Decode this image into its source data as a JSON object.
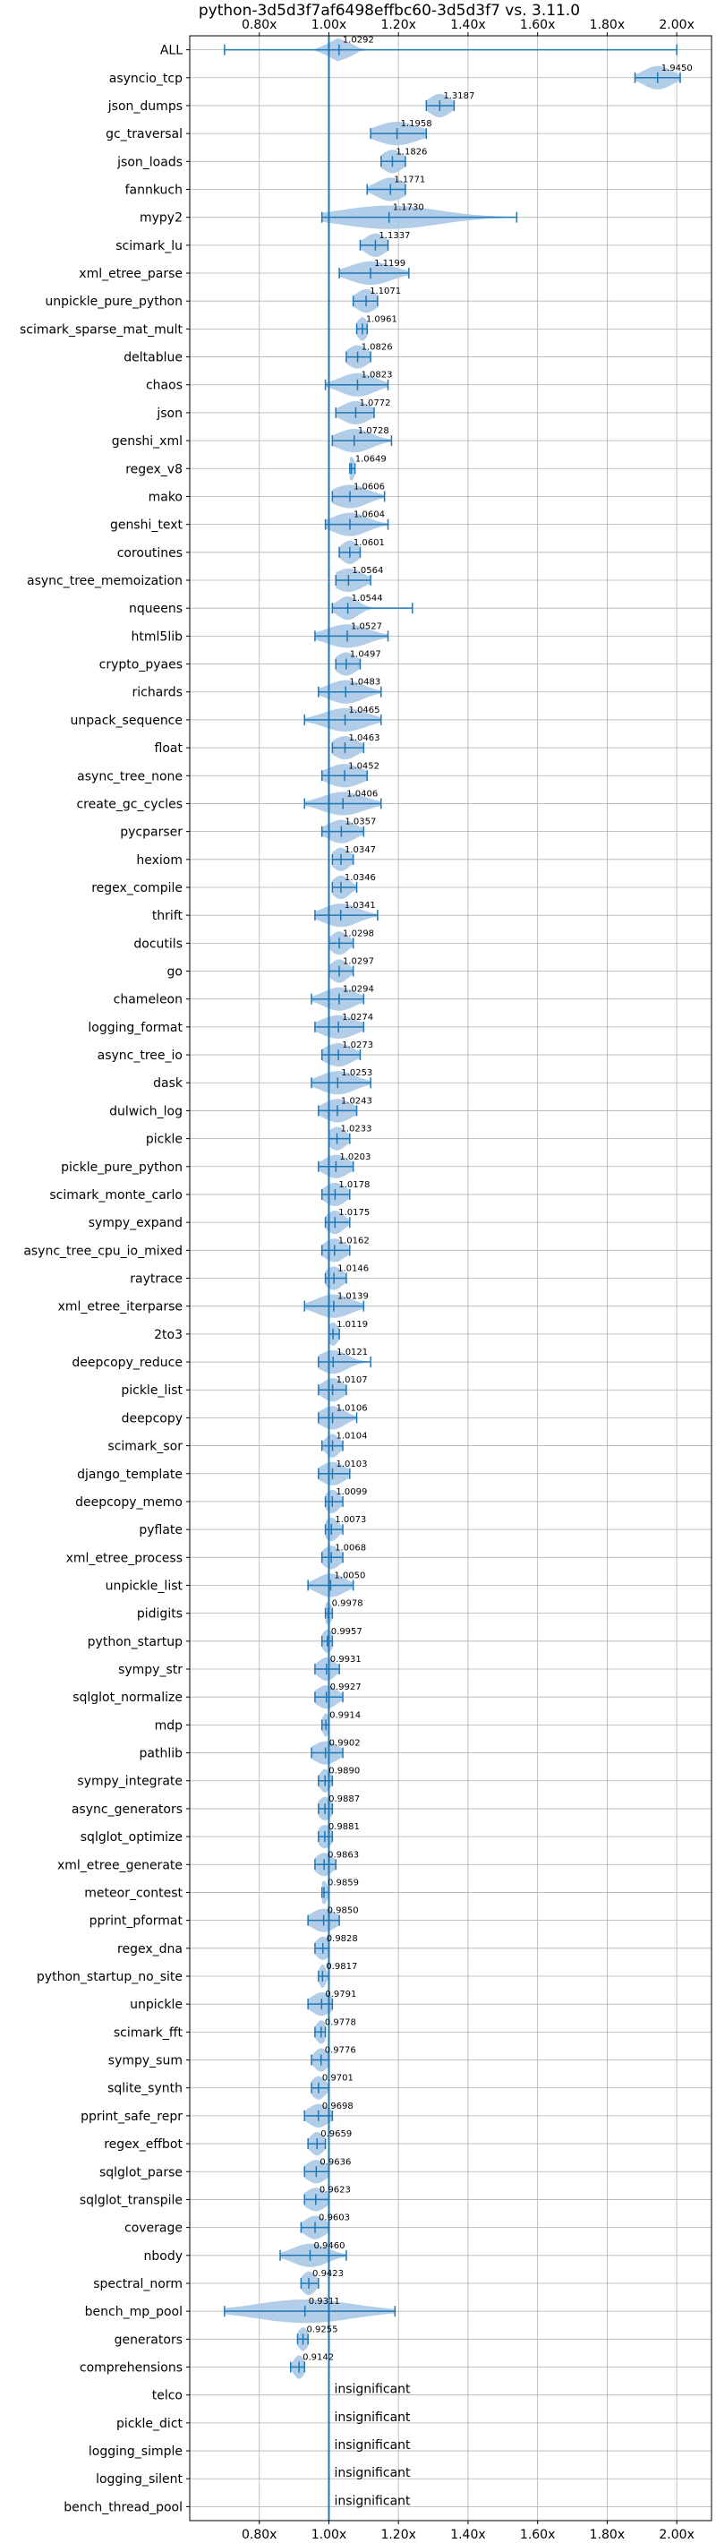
{
  "chart_data": {
    "type": "violin",
    "title": "python-3d5d3f7af6498effbc60-3d5d3f7 vs. 3.11.0",
    "xlabel": "",
    "ylabel": "",
    "xlim": [
      0.6,
      2.1
    ],
    "xticks": [
      0.8,
      1.0,
      1.2,
      1.4,
      1.6,
      1.8,
      2.0
    ],
    "xtick_labels": [
      "0.80x",
      "1.00x",
      "1.20x",
      "1.40x",
      "1.60x",
      "1.80x",
      "2.00x"
    ],
    "grid": true,
    "reference_line": 1.0,
    "colors": {
      "accent": "#1f77b4",
      "violin": "#aac8e4",
      "grid": "#b0b0b0"
    },
    "insignificant_text": "insignificant",
    "benchmarks": [
      {
        "name": "ALL",
        "value": 1.0292,
        "label": "1.0292",
        "min": 0.7,
        "max": 2.0,
        "spread": 0.03
      },
      {
        "name": "asyncio_tcp",
        "value": 1.945,
        "label": "1.9450",
        "min": 1.88,
        "max": 2.01,
        "spread": 0.04
      },
      {
        "name": "json_dumps",
        "value": 1.3187,
        "label": "1.3187",
        "min": 1.28,
        "max": 1.36,
        "spread": 0.03
      },
      {
        "name": "gc_traversal",
        "value": 1.1958,
        "label": "1.1958",
        "min": 1.12,
        "max": 1.28,
        "spread": 0.06
      },
      {
        "name": "json_loads",
        "value": 1.1826,
        "label": "1.1826",
        "min": 1.15,
        "max": 1.22,
        "spread": 0.03
      },
      {
        "name": "fannkuch",
        "value": 1.1771,
        "label": "1.1771",
        "min": 1.11,
        "max": 1.22,
        "spread": 0.04
      },
      {
        "name": "mypy2",
        "value": 1.173,
        "label": "1.1730",
        "min": 0.98,
        "max": 1.54,
        "spread": 0.14
      },
      {
        "name": "scimark_lu",
        "value": 1.1337,
        "label": "1.1337",
        "min": 1.09,
        "max": 1.17,
        "spread": 0.03
      },
      {
        "name": "xml_etree_parse",
        "value": 1.1199,
        "label": "1.1199",
        "min": 1.03,
        "max": 1.23,
        "spread": 0.06
      },
      {
        "name": "unpickle_pure_python",
        "value": 1.1071,
        "label": "1.1071",
        "min": 1.07,
        "max": 1.14,
        "spread": 0.03
      },
      {
        "name": "scimark_sparse_mat_mult",
        "value": 1.0961,
        "label": "1.0961",
        "min": 1.08,
        "max": 1.11,
        "spread": 0.015
      },
      {
        "name": "deltablue",
        "value": 1.0826,
        "label": "1.0826",
        "min": 1.05,
        "max": 1.12,
        "spread": 0.03
      },
      {
        "name": "chaos",
        "value": 1.0823,
        "label": "1.0823",
        "min": 0.99,
        "max": 1.17,
        "spread": 0.05
      },
      {
        "name": "json",
        "value": 1.0772,
        "label": "1.0772",
        "min": 1.02,
        "max": 1.13,
        "spread": 0.04
      },
      {
        "name": "genshi_xml",
        "value": 1.0728,
        "label": "1.0728",
        "min": 1.01,
        "max": 1.18,
        "spread": 0.05
      },
      {
        "name": "regex_v8",
        "value": 1.0649,
        "label": "1.0649",
        "min": 1.06,
        "max": 1.075,
        "spread": 0.01
      },
      {
        "name": "mako",
        "value": 1.0606,
        "label": "1.0606",
        "min": 1.01,
        "max": 1.16,
        "spread": 0.05
      },
      {
        "name": "genshi_text",
        "value": 1.0604,
        "label": "1.0604",
        "min": 0.99,
        "max": 1.17,
        "spread": 0.05
      },
      {
        "name": "coroutines",
        "value": 1.0601,
        "label": "1.0601",
        "min": 1.03,
        "max": 1.09,
        "spread": 0.025
      },
      {
        "name": "async_tree_memoization",
        "value": 1.0564,
        "label": "1.0564",
        "min": 1.02,
        "max": 1.12,
        "spread": 0.04
      },
      {
        "name": "nqueens",
        "value": 1.0544,
        "label": "1.0544",
        "min": 1.01,
        "max": 1.24,
        "spread": 0.03
      },
      {
        "name": "html5lib",
        "value": 1.0527,
        "label": "1.0527",
        "min": 0.96,
        "max": 1.17,
        "spread": 0.06
      },
      {
        "name": "crypto_pyaes",
        "value": 1.0497,
        "label": "1.0497",
        "min": 1.02,
        "max": 1.09,
        "spread": 0.03
      },
      {
        "name": "richards",
        "value": 1.0483,
        "label": "1.0483",
        "min": 0.97,
        "max": 1.15,
        "spread": 0.05
      },
      {
        "name": "unpack_sequence",
        "value": 1.0465,
        "label": "1.0465",
        "min": 0.93,
        "max": 1.15,
        "spread": 0.06
      },
      {
        "name": "float",
        "value": 1.0463,
        "label": "1.0463",
        "min": 1.01,
        "max": 1.1,
        "spread": 0.035
      },
      {
        "name": "async_tree_none",
        "value": 1.0452,
        "label": "1.0452",
        "min": 0.98,
        "max": 1.11,
        "spread": 0.05
      },
      {
        "name": "create_gc_cycles",
        "value": 1.0406,
        "label": "1.0406",
        "min": 0.93,
        "max": 1.15,
        "spread": 0.06
      },
      {
        "name": "pycparser",
        "value": 1.0357,
        "label": "1.0357",
        "min": 0.98,
        "max": 1.1,
        "spread": 0.04
      },
      {
        "name": "hexiom",
        "value": 1.0347,
        "label": "1.0347",
        "min": 1.01,
        "max": 1.07,
        "spread": 0.025
      },
      {
        "name": "regex_compile",
        "value": 1.0346,
        "label": "1.0346",
        "min": 1.01,
        "max": 1.08,
        "spread": 0.025
      },
      {
        "name": "thrift",
        "value": 1.0341,
        "label": "1.0341",
        "min": 0.96,
        "max": 1.14,
        "spread": 0.05
      },
      {
        "name": "docutils",
        "value": 1.0298,
        "label": "1.0298",
        "min": 1.0,
        "max": 1.07,
        "spread": 0.025
      },
      {
        "name": "go",
        "value": 1.0297,
        "label": "1.0297",
        "min": 1.0,
        "max": 1.07,
        "spread": 0.025
      },
      {
        "name": "chameleon",
        "value": 1.0294,
        "label": "1.0294",
        "min": 0.95,
        "max": 1.1,
        "spread": 0.045
      },
      {
        "name": "logging_format",
        "value": 1.0274,
        "label": "1.0274",
        "min": 0.96,
        "max": 1.1,
        "spread": 0.05
      },
      {
        "name": "async_tree_io",
        "value": 1.0273,
        "label": "1.0273",
        "min": 0.98,
        "max": 1.09,
        "spread": 0.04
      },
      {
        "name": "dask",
        "value": 1.0253,
        "label": "1.0253",
        "min": 0.95,
        "max": 1.12,
        "spread": 0.05
      },
      {
        "name": "dulwich_log",
        "value": 1.0243,
        "label": "1.0243",
        "min": 0.97,
        "max": 1.08,
        "spread": 0.04
      },
      {
        "name": "pickle",
        "value": 1.0233,
        "label": "1.0233",
        "min": 1.0,
        "max": 1.06,
        "spread": 0.025
      },
      {
        "name": "pickle_pure_python",
        "value": 1.0203,
        "label": "1.0203",
        "min": 0.97,
        "max": 1.07,
        "spread": 0.035
      },
      {
        "name": "scimark_monte_carlo",
        "value": 1.0178,
        "label": "1.0178",
        "min": 0.98,
        "max": 1.06,
        "spread": 0.03
      },
      {
        "name": "sympy_expand",
        "value": 1.0175,
        "label": "1.0175",
        "min": 0.99,
        "max": 1.06,
        "spread": 0.025
      },
      {
        "name": "async_tree_cpu_io_mixed",
        "value": 1.0162,
        "label": "1.0162",
        "min": 0.98,
        "max": 1.06,
        "spread": 0.03
      },
      {
        "name": "raytrace",
        "value": 1.0146,
        "label": "1.0146",
        "min": 0.99,
        "max": 1.05,
        "spread": 0.025
      },
      {
        "name": "xml_etree_iterparse",
        "value": 1.0139,
        "label": "1.0139",
        "min": 0.93,
        "max": 1.1,
        "spread": 0.05
      },
      {
        "name": "2to3",
        "value": 1.0119,
        "label": "1.0119",
        "min": 1.0,
        "max": 1.03,
        "spread": 0.015
      },
      {
        "name": "deepcopy_reduce",
        "value": 1.0121,
        "label": "1.0121",
        "min": 0.97,
        "max": 1.12,
        "spread": 0.04
      },
      {
        "name": "pickle_list",
        "value": 1.0107,
        "label": "1.0107",
        "min": 0.97,
        "max": 1.05,
        "spread": 0.03
      },
      {
        "name": "deepcopy",
        "value": 1.0106,
        "label": "1.0106",
        "min": 0.97,
        "max": 1.08,
        "spread": 0.035
      },
      {
        "name": "scimark_sor",
        "value": 1.0104,
        "label": "1.0104",
        "min": 0.98,
        "max": 1.04,
        "spread": 0.02
      },
      {
        "name": "django_template",
        "value": 1.0103,
        "label": "1.0103",
        "min": 0.97,
        "max": 1.06,
        "spread": 0.035
      },
      {
        "name": "deepcopy_memo",
        "value": 1.0099,
        "label": "1.0099",
        "min": 0.99,
        "max": 1.04,
        "spread": 0.02
      },
      {
        "name": "pyflate",
        "value": 1.0073,
        "label": "1.0073",
        "min": 0.99,
        "max": 1.04,
        "spread": 0.02
      },
      {
        "name": "xml_etree_process",
        "value": 1.0068,
        "label": "1.0068",
        "min": 0.98,
        "max": 1.04,
        "spread": 0.025
      },
      {
        "name": "unpickle_list",
        "value": 1.005,
        "label": "1.0050",
        "min": 0.94,
        "max": 1.07,
        "spread": 0.04
      },
      {
        "name": "pidigits",
        "value": 0.9978,
        "label": "0.9978",
        "min": 0.99,
        "max": 1.01,
        "spread": 0.01
      },
      {
        "name": "python_startup",
        "value": 0.9957,
        "label": "0.9957",
        "min": 0.98,
        "max": 1.01,
        "spread": 0.015
      },
      {
        "name": "sympy_str",
        "value": 0.9931,
        "label": "0.9931",
        "min": 0.96,
        "max": 1.03,
        "spread": 0.025
      },
      {
        "name": "sqlglot_normalize",
        "value": 0.9927,
        "label": "0.9927",
        "min": 0.96,
        "max": 1.04,
        "spread": 0.03
      },
      {
        "name": "mdp",
        "value": 0.9914,
        "label": "0.9914",
        "min": 0.98,
        "max": 1.0,
        "spread": 0.01
      },
      {
        "name": "pathlib",
        "value": 0.9902,
        "label": "0.9902",
        "min": 0.95,
        "max": 1.04,
        "spread": 0.035
      },
      {
        "name": "sympy_integrate",
        "value": 0.989,
        "label": "0.9890",
        "min": 0.97,
        "max": 1.01,
        "spread": 0.015
      },
      {
        "name": "async_generators",
        "value": 0.9887,
        "label": "0.9887",
        "min": 0.97,
        "max": 1.01,
        "spread": 0.02
      },
      {
        "name": "sqlglot_optimize",
        "value": 0.9881,
        "label": "0.9881",
        "min": 0.97,
        "max": 1.01,
        "spread": 0.02
      },
      {
        "name": "xml_etree_generate",
        "value": 0.9863,
        "label": "0.9863",
        "min": 0.96,
        "max": 1.02,
        "spread": 0.025
      },
      {
        "name": "meteor_contest",
        "value": 0.9859,
        "label": "0.9859",
        "min": 0.98,
        "max": 1.0,
        "spread": 0.01
      },
      {
        "name": "pprint_pformat",
        "value": 0.985,
        "label": "0.9850",
        "min": 0.94,
        "max": 1.03,
        "spread": 0.035
      },
      {
        "name": "regex_dna",
        "value": 0.9828,
        "label": "0.9828",
        "min": 0.96,
        "max": 1.0,
        "spread": 0.02
      },
      {
        "name": "python_startup_no_site",
        "value": 0.9817,
        "label": "0.9817",
        "min": 0.97,
        "max": 1.0,
        "spread": 0.01
      },
      {
        "name": "unpickle",
        "value": 0.9791,
        "label": "0.9791",
        "min": 0.94,
        "max": 1.01,
        "spread": 0.03
      },
      {
        "name": "scimark_fft",
        "value": 0.9778,
        "label": "0.9778",
        "min": 0.96,
        "max": 0.99,
        "spread": 0.015
      },
      {
        "name": "sympy_sum",
        "value": 0.9776,
        "label": "0.9776",
        "min": 0.95,
        "max": 1.0,
        "spread": 0.02
      },
      {
        "name": "sqlite_synth",
        "value": 0.9701,
        "label": "0.9701",
        "min": 0.95,
        "max": 1.0,
        "spread": 0.02
      },
      {
        "name": "pprint_safe_repr",
        "value": 0.9698,
        "label": "0.9698",
        "min": 0.93,
        "max": 1.01,
        "spread": 0.03
      },
      {
        "name": "regex_effbot",
        "value": 0.9659,
        "label": "0.9659",
        "min": 0.94,
        "max": 0.99,
        "spread": 0.02
      },
      {
        "name": "sqlglot_parse",
        "value": 0.9636,
        "label": "0.9636",
        "min": 0.93,
        "max": 1.0,
        "spread": 0.03
      },
      {
        "name": "sqlglot_transpile",
        "value": 0.9623,
        "label": "0.9623",
        "min": 0.93,
        "max": 1.0,
        "spread": 0.03
      },
      {
        "name": "coverage",
        "value": 0.9603,
        "label": "0.9603",
        "min": 0.92,
        "max": 1.0,
        "spread": 0.03
      },
      {
        "name": "nbody",
        "value": 0.946,
        "label": "0.9460",
        "min": 0.86,
        "max": 1.05,
        "spread": 0.05
      },
      {
        "name": "spectral_norm",
        "value": 0.9423,
        "label": "0.9423",
        "min": 0.92,
        "max": 0.97,
        "spread": 0.02
      },
      {
        "name": "bench_mp_pool",
        "value": 0.9311,
        "label": "0.9311",
        "min": 0.7,
        "max": 1.19,
        "spread": 0.14
      },
      {
        "name": "generators",
        "value": 0.9255,
        "label": "0.9255",
        "min": 0.91,
        "max": 0.94,
        "spread": 0.015
      },
      {
        "name": "comprehensions",
        "value": 0.9142,
        "label": "0.9142",
        "min": 0.89,
        "max": 0.93,
        "spread": 0.015
      },
      {
        "name": "telco",
        "value": null,
        "label": null,
        "min": null,
        "max": null,
        "spread": 0
      },
      {
        "name": "pickle_dict",
        "value": null,
        "label": null,
        "min": null,
        "max": null,
        "spread": 0
      },
      {
        "name": "logging_simple",
        "value": null,
        "label": null,
        "min": null,
        "max": null,
        "spread": 0
      },
      {
        "name": "logging_silent",
        "value": null,
        "label": null,
        "min": null,
        "max": null,
        "spread": 0
      },
      {
        "name": "bench_thread_pool",
        "value": null,
        "label": null,
        "min": null,
        "max": null,
        "spread": 0
      }
    ]
  }
}
